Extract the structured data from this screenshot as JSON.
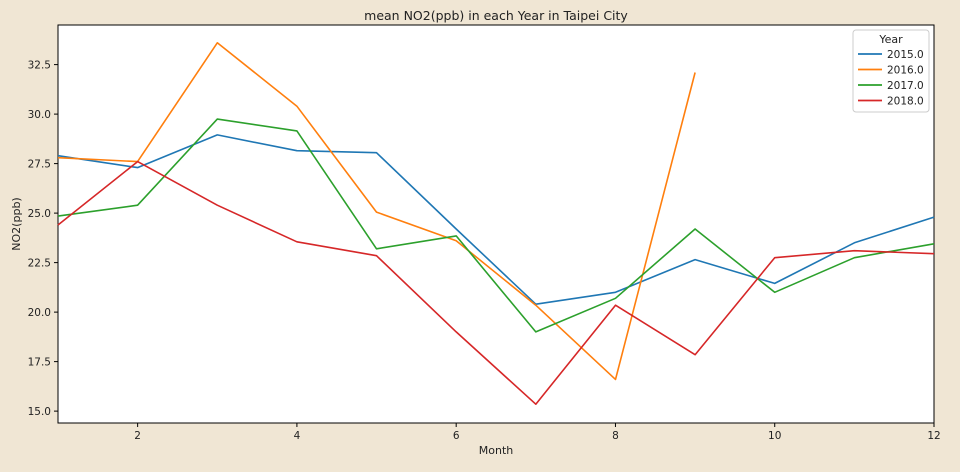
{
  "chart_data": {
    "type": "line",
    "title": "mean NO2(ppb) in each Year in Taipei City",
    "xlabel": "Month",
    "ylabel": "NO2(ppb)",
    "xlim": [
      1,
      12
    ],
    "ylim": [
      14.4,
      34.5
    ],
    "xticks": [
      2,
      4,
      6,
      8,
      10,
      12
    ],
    "yticks": [
      15.0,
      17.5,
      20.0,
      22.5,
      25.0,
      27.5,
      30.0,
      32.5
    ],
    "grid": false,
    "legend": {
      "title": "Year",
      "placement": "top-right"
    },
    "series": [
      {
        "name": "2015.0",
        "color": "#1f77b4",
        "x": [
          1,
          2,
          3,
          4,
          5,
          6,
          7,
          8,
          9,
          10,
          11,
          12
        ],
        "values": [
          27.9,
          27.3,
          28.95,
          28.15,
          28.05,
          24.2,
          20.4,
          21.0,
          22.65,
          21.45,
          23.5,
          24.8
        ]
      },
      {
        "name": "2016.0",
        "color": "#ff7f0e",
        "x": [
          1,
          2,
          3,
          4,
          5,
          6,
          7,
          8,
          9
        ],
        "values": [
          27.8,
          27.6,
          33.6,
          30.4,
          25.05,
          23.6,
          20.35,
          16.6,
          32.1
        ]
      },
      {
        "name": "2017.0",
        "color": "#2ca02c",
        "x": [
          1,
          2,
          3,
          4,
          5,
          6,
          7,
          8,
          9,
          10,
          11,
          12
        ],
        "values": [
          24.85,
          25.4,
          29.75,
          29.15,
          23.2,
          23.85,
          19.0,
          20.7,
          24.2,
          21.0,
          22.75,
          23.45
        ]
      },
      {
        "name": "2018.0",
        "color": "#d62728",
        "x": [
          1,
          2,
          3,
          4,
          5,
          6,
          7,
          8,
          9,
          10,
          11,
          12
        ],
        "values": [
          24.4,
          27.6,
          25.4,
          23.55,
          22.85,
          19.0,
          15.35,
          20.35,
          17.85,
          22.75,
          23.1,
          22.95
        ]
      }
    ]
  }
}
